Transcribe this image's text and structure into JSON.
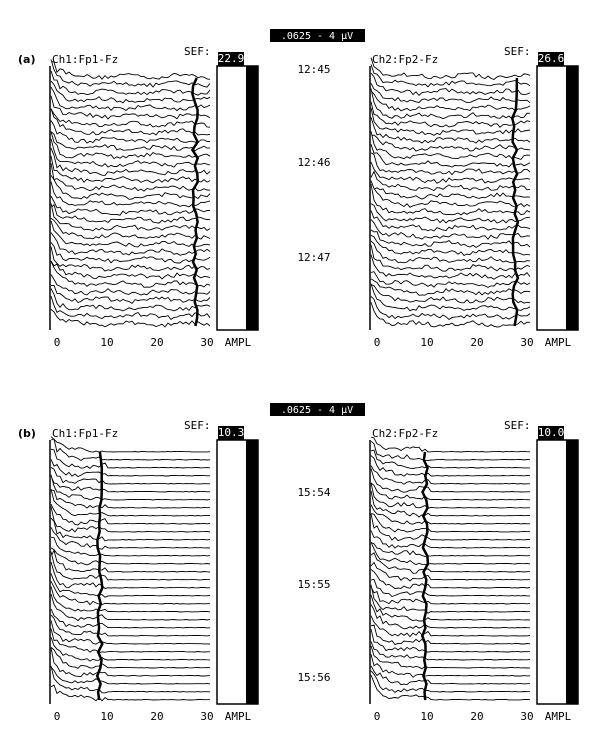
{
  "panels": [
    {
      "label": "(a)",
      "scale_label": ".0625 - 4 μV",
      "times": [
        "12:45",
        "12:46",
        "12:47"
      ],
      "channels": [
        {
          "name": "Ch1:Fp1-Fz",
          "sef_label": "SEF:",
          "sef": "22.9"
        },
        {
          "name": "Ch2:Fp2-Fz",
          "sef_label": "SEF:",
          "sef": "26.6"
        }
      ]
    },
    {
      "label": "(b)",
      "scale_label": ".0625 - 4 μV",
      "times": [
        "15:54",
        "15:55",
        "15:56"
      ],
      "channels": [
        {
          "name": "Ch1:Fp1-Fz",
          "sef_label": "SEF:",
          "sef": "10.3"
        },
        {
          "name": "Ch2:Fp2-Fz",
          "sef_label": "SEF:",
          "sef": "10.0"
        }
      ]
    }
  ],
  "x_axis": {
    "xlim": [
      0,
      30
    ],
    "ticks": [
      0,
      10,
      20,
      30
    ],
    "label": "AMPL"
  }
}
